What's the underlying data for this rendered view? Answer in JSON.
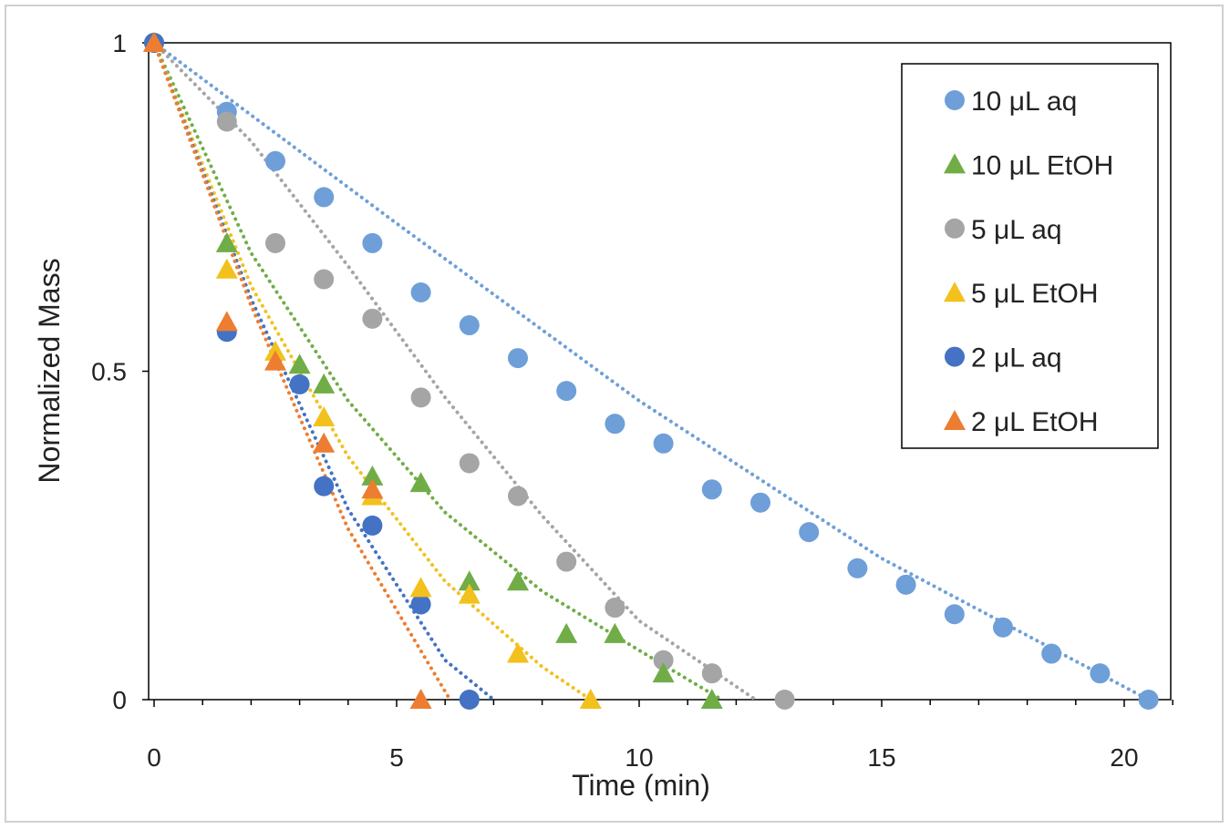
{
  "chart_data": {
    "type": "scatter",
    "title": "",
    "xlabel": "Time (min)",
    "ylabel": "Normalized Mass",
    "xlim": [
      0,
      21
    ],
    "ylim": [
      0,
      1
    ],
    "x_ticks": [
      0,
      5,
      10,
      15,
      20
    ],
    "x_tick_labels": [
      "0",
      "5",
      "10",
      "15",
      "20"
    ],
    "y_ticks": [
      0,
      0.5,
      1
    ],
    "y_tick_labels": [
      "0",
      "0.5",
      "1"
    ],
    "grid": false,
    "legend_position": "top-right",
    "trendlines": "dotted",
    "series": [
      {
        "name": "10 μL aq",
        "marker": "circle",
        "color": "#6f9fd8",
        "points": [
          [
            0,
            1
          ],
          [
            1.5,
            0.895
          ],
          [
            2.5,
            0.82
          ],
          [
            3.5,
            0.765
          ],
          [
            4.5,
            0.695
          ],
          [
            5.5,
            0.62
          ],
          [
            6.5,
            0.57
          ],
          [
            7.5,
            0.52
          ],
          [
            8.5,
            0.47
          ],
          [
            9.5,
            0.42
          ],
          [
            10.5,
            0.39
          ],
          [
            11.5,
            0.32
          ],
          [
            12.5,
            0.3
          ],
          [
            13.5,
            0.255
          ],
          [
            14.5,
            0.2
          ],
          [
            15.5,
            0.175
          ],
          [
            16.5,
            0.13
          ],
          [
            17.5,
            0.11
          ],
          [
            18.5,
            0.07
          ],
          [
            19.5,
            0.04
          ],
          [
            20.5,
            0
          ]
        ],
        "trend": [
          [
            0,
            1
          ],
          [
            5,
            0.725
          ],
          [
            10,
            0.455
          ],
          [
            15,
            0.215
          ],
          [
            20.5,
            0
          ]
        ]
      },
      {
        "name": "10 μL EtOH",
        "marker": "triangle",
        "color": "#70ad47",
        "points": [
          [
            0,
            1
          ],
          [
            1.5,
            0.695
          ],
          [
            3,
            0.51
          ],
          [
            3.5,
            0.48
          ],
          [
            4.5,
            0.34
          ],
          [
            5.5,
            0.33
          ],
          [
            6.5,
            0.18
          ],
          [
            7.5,
            0.18
          ],
          [
            8.5,
            0.1
          ],
          [
            9.5,
            0.1
          ],
          [
            10.5,
            0.04
          ],
          [
            11.5,
            0
          ]
        ],
        "trend": [
          [
            0,
            1
          ],
          [
            2,
            0.68
          ],
          [
            4,
            0.455
          ],
          [
            6,
            0.285
          ],
          [
            8,
            0.165
          ],
          [
            10,
            0.075
          ],
          [
            11.7,
            0
          ]
        ]
      },
      {
        "name": "5 μL aq",
        "marker": "circle",
        "color": "#a5a5a5",
        "points": [
          [
            0,
            1
          ],
          [
            1.5,
            0.88
          ],
          [
            2.5,
            0.695
          ],
          [
            3.5,
            0.64
          ],
          [
            4.5,
            0.58
          ],
          [
            5.5,
            0.46
          ],
          [
            6.5,
            0.36
          ],
          [
            7.5,
            0.31
          ],
          [
            8.5,
            0.21
          ],
          [
            9.5,
            0.14
          ],
          [
            10.5,
            0.06
          ],
          [
            11.5,
            0.04
          ],
          [
            13,
            0
          ]
        ],
        "trend": [
          [
            0,
            1
          ],
          [
            2,
            0.85
          ],
          [
            4,
            0.66
          ],
          [
            6,
            0.46
          ],
          [
            8,
            0.28
          ],
          [
            10,
            0.12
          ],
          [
            12.4,
            0
          ]
        ]
      },
      {
        "name": "5 μL EtOH",
        "marker": "triangle",
        "color": "#f2c11d",
        "points": [
          [
            0,
            1
          ],
          [
            1.5,
            0.655
          ],
          [
            2.5,
            0.53
          ],
          [
            3.5,
            0.43
          ],
          [
            4.5,
            0.31
          ],
          [
            5.5,
            0.17
          ],
          [
            6.5,
            0.16
          ],
          [
            7.5,
            0.07
          ],
          [
            9,
            0
          ]
        ],
        "trend": [
          [
            0,
            1
          ],
          [
            2,
            0.63
          ],
          [
            4,
            0.37
          ],
          [
            6,
            0.18
          ],
          [
            8,
            0.05
          ],
          [
            9,
            0
          ]
        ]
      },
      {
        "name": "2 μL aq",
        "marker": "circle",
        "color": "#4472c4",
        "points": [
          [
            0,
            1
          ],
          [
            1.5,
            0.56
          ],
          [
            3,
            0.48
          ],
          [
            3.5,
            0.325
          ],
          [
            4.5,
            0.265
          ],
          [
            5.5,
            0.145
          ],
          [
            6.5,
            0
          ]
        ],
        "trend": [
          [
            0,
            1
          ],
          [
            2,
            0.61
          ],
          [
            4,
            0.29
          ],
          [
            6,
            0.06
          ],
          [
            7,
            0
          ]
        ]
      },
      {
        "name": "2 μL EtOH",
        "marker": "triangle",
        "color": "#ed7d31",
        "points": [
          [
            0,
            1
          ],
          [
            1.5,
            0.575
          ],
          [
            2.5,
            0.515
          ],
          [
            3.5,
            0.39
          ],
          [
            4.5,
            0.32
          ],
          [
            5.5,
            0
          ]
        ],
        "trend": [
          [
            0,
            1
          ],
          [
            2,
            0.6
          ],
          [
            4,
            0.26
          ],
          [
            6.1,
            0
          ]
        ]
      }
    ]
  }
}
